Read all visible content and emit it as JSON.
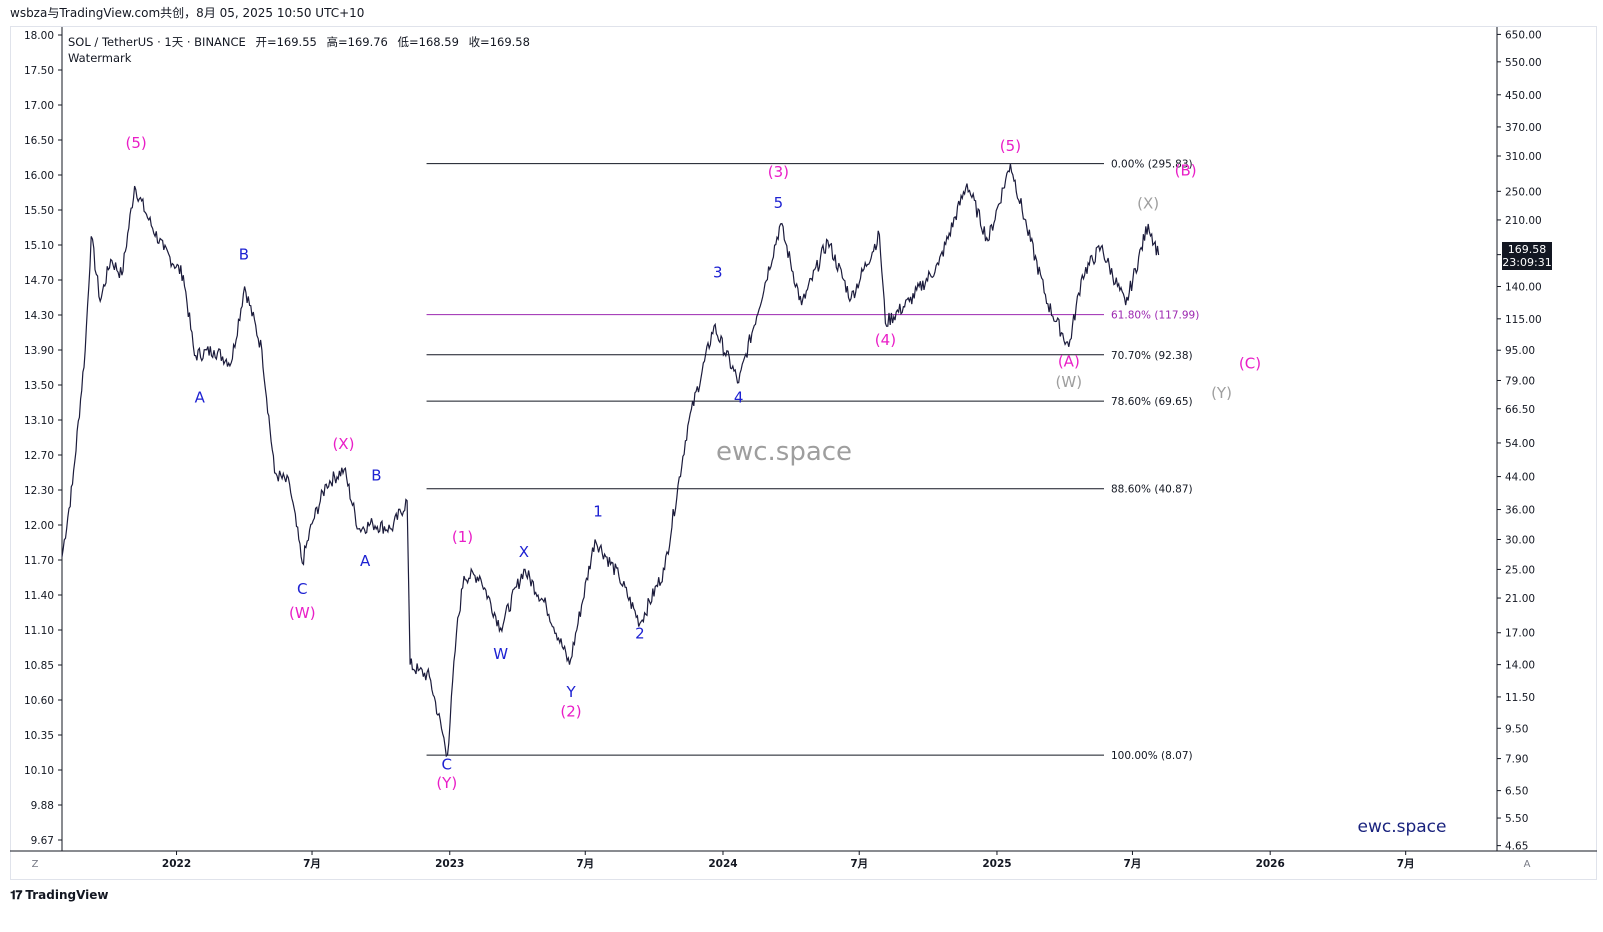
{
  "header": {
    "author_line": "wsbza与TradingView.com共创，8月 05, 2025 10:50 UTC+10"
  },
  "legend": {
    "symbol": "SOL / TetherUS · 1天 · BINANCE",
    "open": "开=169.55",
    "high": "高=169.76",
    "low": "低=168.59",
    "close": "收=169.58",
    "watermark_label": "Watermark"
  },
  "watermark": {
    "center_text": "ewc.space",
    "corner_text": "ewc.space"
  },
  "price_badge": {
    "price": "169.58",
    "countdown": "23:09:31"
  },
  "footer": {
    "brand": "TradingView",
    "left_corner": "Z",
    "right_corner": "A"
  },
  "chart_data": {
    "type": "line",
    "yscale": "log",
    "ylim": [
      4.5,
      680
    ],
    "xlim": [
      "2021-08-01",
      "2026-10-31"
    ],
    "left_axis_ticks": [
      "18.00",
      "17.50",
      "17.00",
      "16.50",
      "16.00",
      "15.50",
      "15.10",
      "14.70",
      "14.30",
      "13.90",
      "13.50",
      "13.10",
      "12.70",
      "12.30",
      "12.00",
      "11.70",
      "11.40",
      "11.10",
      "10.85",
      "10.60",
      "10.35",
      "10.10",
      "9.88",
      "9.67"
    ],
    "right_axis_ticks": [
      650,
      550,
      450,
      370,
      310,
      250,
      210,
      170,
      140,
      115,
      95,
      79,
      66.5,
      54,
      44,
      36,
      30,
      25,
      21,
      17,
      14,
      11.5,
      9.5,
      7.9,
      6.5,
      5.5,
      4.65
    ],
    "right_axis_labels": [
      "650.00",
      "550.00",
      "450.00",
      "370.00",
      "310.00",
      "250.00",
      "210.00",
      "170.00",
      "140.00",
      "115.00",
      "95.00",
      "79.00",
      "66.50",
      "54.00",
      "44.00",
      "36.00",
      "30.00",
      "25.00",
      "21.00",
      "17.00",
      "14.00",
      "11.50",
      "9.50",
      "7.90",
      "6.50",
      "5.50",
      "4.65"
    ],
    "x_ticks": [
      {
        "date": "2022-01-01",
        "label": "2022"
      },
      {
        "date": "2022-07-01",
        "label": "7月"
      },
      {
        "date": "2023-01-01",
        "label": "2023"
      },
      {
        "date": "2023-07-01",
        "label": "7月"
      },
      {
        "date": "2024-01-01",
        "label": "2024"
      },
      {
        "date": "2024-07-01",
        "label": "7月"
      },
      {
        "date": "2025-01-01",
        "label": "2025"
      },
      {
        "date": "2025-07-01",
        "label": "7月"
      },
      {
        "date": "2026-01-01",
        "label": "2026"
      },
      {
        "date": "2026-07-01",
        "label": "7月"
      }
    ],
    "price_path": [
      {
        "x": "2021-08-01",
        "y": 27
      },
      {
        "x": "2021-08-15",
        "y": 42
      },
      {
        "x": "2021-09-01",
        "y": 95
      },
      {
        "x": "2021-09-09",
        "y": 190
      },
      {
        "x": "2021-09-21",
        "y": 128
      },
      {
        "x": "2021-10-05",
        "y": 165
      },
      {
        "x": "2021-10-20",
        "y": 150
      },
      {
        "x": "2021-11-06",
        "y": 258
      },
      {
        "x": "2021-11-25",
        "y": 210
      },
      {
        "x": "2021-12-15",
        "y": 175
      },
      {
        "x": "2022-01-10",
        "y": 150
      },
      {
        "x": "2022-01-25",
        "y": 92
      },
      {
        "x": "2022-02-20",
        "y": 95
      },
      {
        "x": "2022-03-15",
        "y": 88
      },
      {
        "x": "2022-04-02",
        "y": 140
      },
      {
        "x": "2022-04-25",
        "y": 95
      },
      {
        "x": "2022-05-12",
        "y": 45
      },
      {
        "x": "2022-06-01",
        "y": 42
      },
      {
        "x": "2022-06-18",
        "y": 26
      },
      {
        "x": "2022-07-01",
        "y": 33
      },
      {
        "x": "2022-07-20",
        "y": 42
      },
      {
        "x": "2022-08-13",
        "y": 46
      },
      {
        "x": "2022-09-01",
        "y": 32
      },
      {
        "x": "2022-09-20",
        "y": 33
      },
      {
        "x": "2022-10-15",
        "y": 32
      },
      {
        "x": "2022-11-05",
        "y": 38
      },
      {
        "x": "2022-11-09",
        "y": 14
      },
      {
        "x": "2022-11-20",
        "y": 13.5
      },
      {
        "x": "2022-12-05",
        "y": 13
      },
      {
        "x": "2022-12-29",
        "y": 8.07
      },
      {
        "x": "2023-01-10",
        "y": 17
      },
      {
        "x": "2023-01-20",
        "y": 24
      },
      {
        "x": "2023-02-10",
        "y": 24
      },
      {
        "x": "2023-03-10",
        "y": 17.5
      },
      {
        "x": "2023-04-10",
        "y": 25
      },
      {
        "x": "2023-05-10",
        "y": 20
      },
      {
        "x": "2023-06-10",
        "y": 14
      },
      {
        "x": "2023-07-14",
        "y": 30
      },
      {
        "x": "2023-08-15",
        "y": 24
      },
      {
        "x": "2023-09-12",
        "y": 18
      },
      {
        "x": "2023-10-15",
        "y": 25
      },
      {
        "x": "2023-11-15",
        "y": 60
      },
      {
        "x": "2023-12-20",
        "y": 110
      },
      {
        "x": "2024-01-22",
        "y": 78
      },
      {
        "x": "2024-03-18",
        "y": 205
      },
      {
        "x": "2024-04-15",
        "y": 125
      },
      {
        "x": "2024-05-20",
        "y": 185
      },
      {
        "x": "2024-06-20",
        "y": 130
      },
      {
        "x": "2024-07-28",
        "y": 192
      },
      {
        "x": "2024-08-05",
        "y": 112
      },
      {
        "x": "2024-09-06",
        "y": 128
      },
      {
        "x": "2024-10-15",
        "y": 160
      },
      {
        "x": "2024-11-22",
        "y": 262
      },
      {
        "x": "2024-12-20",
        "y": 185
      },
      {
        "x": "2025-01-19",
        "y": 295.83
      },
      {
        "x": "2025-02-10",
        "y": 200
      },
      {
        "x": "2025-03-10",
        "y": 126
      },
      {
        "x": "2025-04-07",
        "y": 97
      },
      {
        "x": "2025-04-25",
        "y": 150
      },
      {
        "x": "2025-05-20",
        "y": 178
      },
      {
        "x": "2025-06-22",
        "y": 125
      },
      {
        "x": "2025-07-22",
        "y": 205
      },
      {
        "x": "2025-08-05",
        "y": 169.58
      }
    ],
    "fib_levels": [
      {
        "label": "0.00% (295.83)",
        "value": 295.83,
        "color": "#131722",
        "from": "2022-12-01"
      },
      {
        "label": "61.80% (117.99)",
        "value": 117.99,
        "color": "#9c27b0",
        "from": "2022-12-01"
      },
      {
        "label": "70.70% (92.38)",
        "value": 92.38,
        "color": "#131722",
        "from": "2022-12-01"
      },
      {
        "label": "78.60% (69.65)",
        "value": 69.65,
        "color": "#131722",
        "from": "2022-12-01"
      },
      {
        "label": "88.60% (40.87)",
        "value": 40.87,
        "color": "#131722",
        "from": "2022-12-01"
      },
      {
        "label": "100.00% (8.07)",
        "value": 8.07,
        "color": "#131722",
        "from": "2022-12-01"
      }
    ],
    "wave_labels": [
      {
        "text": "(5)",
        "x": "2021-11-08",
        "y": 325,
        "color": "#e91ec7"
      },
      {
        "text": "A",
        "x": "2022-02-01",
        "y": 69,
        "color": "#1e22d2"
      },
      {
        "text": "B",
        "x": "2022-04-01",
        "y": 165,
        "color": "#1e22d2"
      },
      {
        "text": "C",
        "x": "2022-06-18",
        "y": 21.5,
        "color": "#1e22d2"
      },
      {
        "text": "(W)",
        "x": "2022-06-18",
        "y": 18.6,
        "color": "#e91ec7"
      },
      {
        "text": "(X)",
        "x": "2022-08-12",
        "y": 52,
        "color": "#e91ec7"
      },
      {
        "text": "B",
        "x": "2022-09-25",
        "y": 43,
        "color": "#1e22d2"
      },
      {
        "text": "A",
        "x": "2022-09-10",
        "y": 25.5,
        "color": "#1e22d2"
      },
      {
        "text": "(1)",
        "x": "2023-01-18",
        "y": 29.5,
        "color": "#e91ec7"
      },
      {
        "text": "X",
        "x": "2023-04-10",
        "y": 27,
        "color": "#1e22d2"
      },
      {
        "text": "W",
        "x": "2023-03-10",
        "y": 14.5,
        "color": "#1e22d2"
      },
      {
        "text": "1",
        "x": "2023-07-18",
        "y": 34.5,
        "color": "#1e22d2"
      },
      {
        "text": "Y",
        "x": "2023-06-12",
        "y": 11.5,
        "color": "#1e22d2"
      },
      {
        "text": "(2)",
        "x": "2023-06-12",
        "y": 10.2,
        "color": "#e91ec7"
      },
      {
        "text": "2",
        "x": "2023-09-12",
        "y": 16.4,
        "color": "#1e22d2"
      },
      {
        "text": "C",
        "x": "2022-12-28",
        "y": 7.4,
        "color": "#1e22d2"
      },
      {
        "text": "(Y)",
        "x": "2022-12-28",
        "y": 6.6,
        "color": "#e91ec7"
      },
      {
        "text": "3",
        "x": "2023-12-25",
        "y": 148,
        "color": "#1e22d2"
      },
      {
        "text": "4",
        "x": "2024-01-22",
        "y": 69,
        "color": "#1e22d2"
      },
      {
        "text": "(3)",
        "x": "2024-03-15",
        "y": 273,
        "color": "#e91ec7"
      },
      {
        "text": "5",
        "x": "2024-03-15",
        "y": 226,
        "color": "#1e22d2"
      },
      {
        "text": "(4)",
        "x": "2024-08-05",
        "y": 98,
        "color": "#e91ec7"
      },
      {
        "text": "(5)",
        "x": "2025-01-19",
        "y": 320,
        "color": "#e91ec7"
      },
      {
        "text": "(A)",
        "x": "2025-04-07",
        "y": 86,
        "color": "#e91ec7"
      },
      {
        "text": "(W)",
        "x": "2025-04-07",
        "y": 76,
        "color": "#9e9e9e"
      },
      {
        "text": "(X)",
        "x": "2025-07-22",
        "y": 225,
        "color": "#9e9e9e"
      },
      {
        "text": "(B)",
        "x": "2025-09-10",
        "y": 275,
        "color": "#e91ec7"
      },
      {
        "text": "(C)",
        "x": "2025-12-05",
        "y": 85,
        "color": "#e91ec7"
      },
      {
        "text": "(Y)",
        "x": "2025-10-28",
        "y": 71,
        "color": "#9e9e9e"
      }
    ]
  }
}
